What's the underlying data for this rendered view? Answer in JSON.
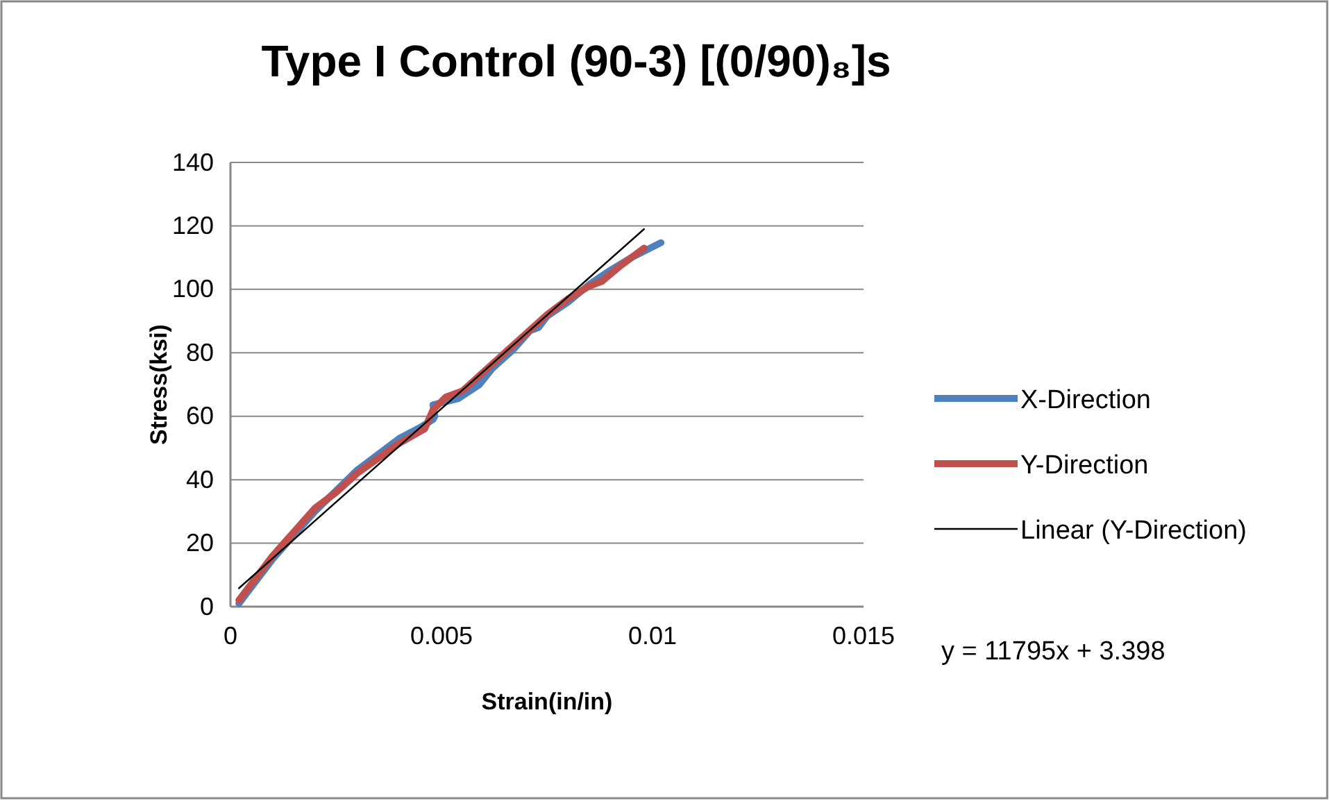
{
  "chart_data": {
    "type": "line",
    "title": "Type I Control (90-3) [(0/90)₈]s",
    "xlabel": "Strain(in/in)",
    "ylabel": "Stress(ksi)",
    "xlim": [
      0,
      0.015
    ],
    "xticks": [
      0,
      0.005,
      0.01,
      0.015
    ],
    "ylim": [
      0,
      140
    ],
    "yticks": [
      0,
      20,
      40,
      60,
      80,
      100,
      120,
      140
    ],
    "grid": "y",
    "legend": "right",
    "marker": "none",
    "line_style": "solid",
    "annotations": [
      "y = 11795x + 3.398"
    ],
    "series": [
      {
        "name": "X-Direction",
        "color": "#4f81bd",
        "x": [
          0.0002,
          0.001,
          0.002,
          0.003,
          0.004,
          0.0045,
          0.0048,
          0.00484,
          0.0048,
          0.0054,
          0.0059,
          0.0062,
          0.0067,
          0.0071,
          0.0073,
          0.0075,
          0.008,
          0.0085,
          0.009,
          0.0095,
          0.0102
        ],
        "values": [
          1,
          15,
          30,
          43,
          53,
          56.5,
          59,
          60,
          63.6,
          65.6,
          70,
          75,
          81,
          87,
          88,
          91.5,
          96,
          101.5,
          106,
          110,
          114.7
        ]
      },
      {
        "name": "Y-Direction",
        "color": "#c0504d",
        "x": [
          0.0002,
          0.001,
          0.002,
          0.0025,
          0.003,
          0.004,
          0.0046,
          0.0048,
          0.0051,
          0.0055,
          0.006,
          0.0065,
          0.007,
          0.0075,
          0.008,
          0.0085,
          0.0088,
          0.0092,
          0.0098
        ],
        "values": [
          2,
          16,
          31,
          36,
          42,
          51.5,
          56,
          62,
          66,
          68,
          74,
          80,
          86,
          92,
          97,
          101,
          102.5,
          107,
          113
        ]
      },
      {
        "name": "Linear (Y-Direction)",
        "color": "#000000",
        "x": [
          0.0002,
          0.0098
        ],
        "values": [
          5.8,
          119
        ]
      }
    ]
  }
}
